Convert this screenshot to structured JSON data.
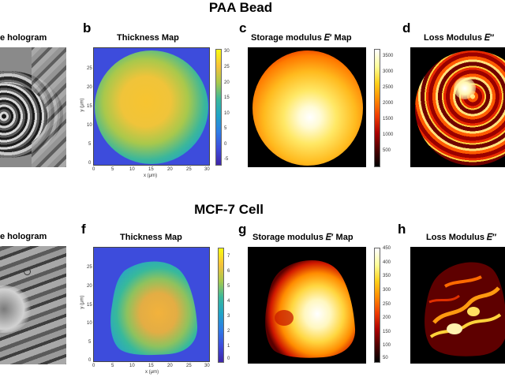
{
  "figure": {
    "section_top": "PAA Bead",
    "section_bottom": "MCF-7 Cell",
    "panels": {
      "a": {
        "title": "e hologram"
      },
      "b": {
        "letter": "b",
        "title": "Thickness Map",
        "xticks": [
          "0",
          "5",
          "10",
          "15",
          "20",
          "25",
          "30"
        ],
        "yticks": [
          "25",
          "20",
          "15",
          "10",
          "5",
          "0"
        ],
        "xlabel": "x (μm)",
        "ylabel": "y (μm)",
        "cbar_ticks": [
          "30",
          "25",
          "20",
          "15",
          "10",
          "5",
          "0",
          "-5"
        ]
      },
      "c": {
        "letter": "c",
        "title": "Storage modulus 𝐸′ Map",
        "cbar_ticks": [
          "3500",
          "3000",
          "2500",
          "2000",
          "1500",
          "1000",
          "500"
        ]
      },
      "d": {
        "letter": "d",
        "title": "Loss Modulus 𝐸′′"
      },
      "e": {
        "title": "e hologram"
      },
      "f": {
        "letter": "f",
        "title": "Thickness Map",
        "xticks": [
          "0",
          "5",
          "10",
          "15",
          "20",
          "25",
          "30"
        ],
        "yticks": [
          "25",
          "20",
          "15",
          "10",
          "5",
          "0"
        ],
        "xlabel": "x (μm)",
        "ylabel": "y (μm)",
        "cbar_ticks": [
          "7",
          "6",
          "5",
          "4",
          "3",
          "2",
          "1",
          "0"
        ]
      },
      "g": {
        "letter": "g",
        "title": "Storage modulus 𝐸′ Map",
        "cbar_ticks": [
          "450",
          "400",
          "350",
          "300",
          "250",
          "200",
          "150",
          "100",
          "50"
        ]
      },
      "h": {
        "letter": "h",
        "title": "Loss Modulus 𝐸′′"
      }
    }
  }
}
